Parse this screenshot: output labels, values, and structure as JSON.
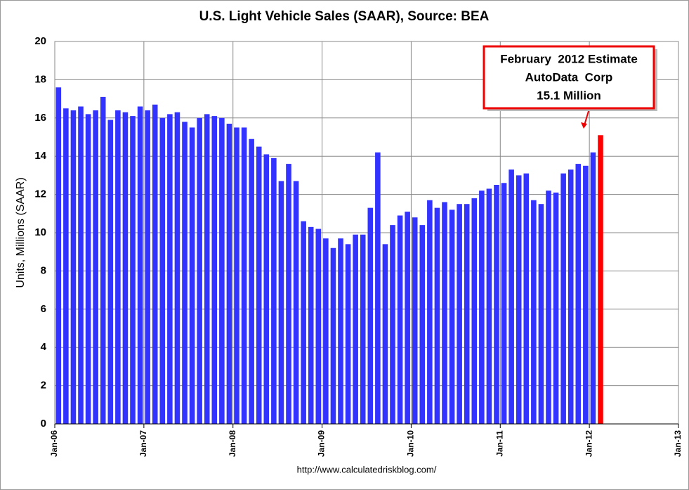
{
  "chart_data": {
    "type": "bar",
    "title": "U.S. Light Vehicle Sales (SAAR), Source: BEA",
    "y_label": "Units, Millions (SAAR)",
    "source": "http://www.calculatedriskblog.com/",
    "annotation": [
      "February  2012 Estimate",
      "AutoData  Corp",
      "15.1 Million"
    ],
    "categories": [
      "Jan-06",
      null,
      null,
      null,
      null,
      null,
      null,
      null,
      null,
      null,
      null,
      null,
      "Jan-07",
      null,
      null,
      null,
      null,
      null,
      null,
      null,
      null,
      null,
      null,
      null,
      "Jan-08",
      null,
      null,
      null,
      null,
      null,
      null,
      null,
      null,
      null,
      null,
      null,
      "Jan-09",
      null,
      null,
      null,
      null,
      null,
      null,
      null,
      null,
      null,
      null,
      null,
      "Jan-10",
      null,
      null,
      null,
      null,
      null,
      null,
      null,
      null,
      null,
      null,
      null,
      "Jan-11",
      null,
      null,
      null,
      null,
      null,
      null,
      null,
      null,
      null,
      null,
      null,
      "Jan-12",
      null,
      null,
      null,
      null,
      null,
      null,
      null,
      null,
      null,
      null,
      null,
      "Jan-13"
    ],
    "values": [
      17.6,
      16.5,
      16.4,
      16.6,
      16.2,
      16.4,
      17.1,
      15.9,
      16.4,
      16.3,
      16.1,
      16.6,
      16.4,
      16.7,
      16.0,
      16.2,
      16.3,
      15.8,
      15.5,
      16.0,
      16.2,
      16.1,
      16.0,
      15.7,
      15.5,
      15.5,
      14.9,
      14.5,
      14.1,
      13.9,
      12.7,
      13.6,
      12.7,
      10.6,
      10.3,
      10.2,
      9.7,
      9.2,
      9.7,
      9.4,
      9.9,
      9.9,
      11.3,
      14.2,
      9.4,
      10.4,
      10.9,
      11.1,
      10.8,
      10.4,
      11.7,
      11.3,
      11.6,
      11.2,
      11.5,
      11.5,
      11.8,
      12.2,
      12.3,
      12.5,
      12.6,
      13.3,
      13.0,
      13.1,
      11.7,
      11.5,
      12.2,
      12.1,
      13.1,
      13.3,
      13.6,
      13.5,
      14.2,
      15.1,
      null,
      null,
      null,
      null,
      null,
      null,
      null,
      null,
      null,
      null,
      null
    ],
    "color": "#3333ff",
    "highlight": {
      "index": 73,
      "color": "#ff0000"
    },
    "ylim": [
      0,
      20
    ],
    "yticks": [
      0,
      2,
      4,
      6,
      8,
      10,
      12,
      14,
      16,
      18,
      20
    ],
    "grid": true
  }
}
